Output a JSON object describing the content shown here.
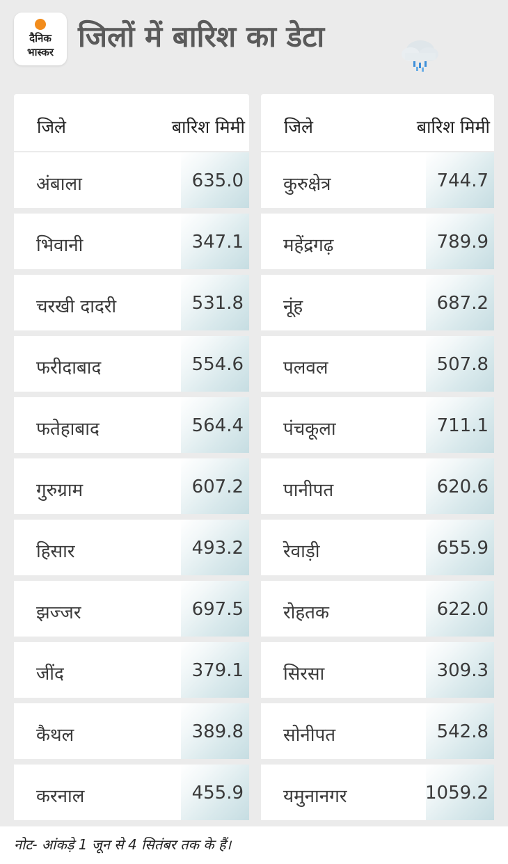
{
  "header": {
    "logo_line1": "दैनिक",
    "logo_line2": "भास्कर",
    "title": "जिलों में बारिश का डेटा",
    "icon": "rain-cloud-icon"
  },
  "columns": {
    "district_label": "जिले",
    "rain_label": "बारिश मिमी"
  },
  "left_rows": [
    {
      "district": "अंबाला",
      "rain": "635.0"
    },
    {
      "district": "भिवानी",
      "rain": "347.1"
    },
    {
      "district": "चरखी दादरी",
      "rain": "531.8"
    },
    {
      "district": "फरीदाबाद",
      "rain": "554.6"
    },
    {
      "district": "फतेहाबाद",
      "rain": "564.4"
    },
    {
      "district": "गुरुग्राम",
      "rain": "607.2"
    },
    {
      "district": "हिसार",
      "rain": "493.2"
    },
    {
      "district": "झज्जर",
      "rain": "697.5"
    },
    {
      "district": "जींद",
      "rain": "379.1"
    },
    {
      "district": "कैथल",
      "rain": "389.8"
    },
    {
      "district": "करनाल",
      "rain": "455.9"
    }
  ],
  "right_rows": [
    {
      "district": "कुरुक्षेत्र",
      "rain": "744.7"
    },
    {
      "district": "महेंद्रगढ़",
      "rain": "789.9"
    },
    {
      "district": "नूंह",
      "rain": "687.2"
    },
    {
      "district": "पलवल",
      "rain": "507.8"
    },
    {
      "district": "पंचकूला",
      "rain": "711.1"
    },
    {
      "district": "पानीपत",
      "rain": "620.6"
    },
    {
      "district": "रेवाड़ी",
      "rain": "655.9"
    },
    {
      "district": "रोहतक",
      "rain": "622.0"
    },
    {
      "district": "सिरसा",
      "rain": "309.3"
    },
    {
      "district": "सोनीपत",
      "rain": "542.8"
    },
    {
      "district": "यमुनानगर",
      "rain": "1059.2"
    }
  ],
  "footer": {
    "note": "नोट- आंकड़े 1 जून से 4 सितंबर तक के हैं।"
  },
  "colors": {
    "background": "#ebebeb",
    "card": "#ffffff",
    "value_tint": "#c6dde2",
    "logo_sun": "#f28c1c"
  }
}
